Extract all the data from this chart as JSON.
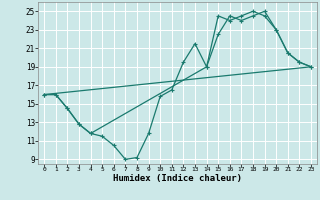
{
  "xlabel": "Humidex (Indice chaleur)",
  "ylabel": "",
  "bg_color": "#cce8e8",
  "grid_color": "#ffffff",
  "line_color": "#1a7a6e",
  "xlim": [
    -0.5,
    23.5
  ],
  "ylim": [
    8.5,
    26.0
  ],
  "xticks": [
    0,
    1,
    2,
    3,
    4,
    5,
    6,
    7,
    8,
    9,
    10,
    11,
    12,
    13,
    14,
    15,
    16,
    17,
    18,
    19,
    20,
    21,
    22,
    23
  ],
  "yticks": [
    9,
    11,
    13,
    15,
    17,
    19,
    21,
    23,
    25
  ],
  "line1_x": [
    0,
    1,
    2,
    3,
    4,
    14,
    15,
    16,
    17,
    18,
    19,
    20,
    21,
    22,
    23
  ],
  "line1_y": [
    16,
    16,
    14.5,
    12.8,
    11.8,
    19.0,
    24.5,
    24.0,
    24.5,
    25.0,
    24.5,
    23.0,
    20.5,
    19.5,
    19.0
  ],
  "line2_x": [
    0,
    1,
    2,
    3,
    4,
    5,
    6,
    7,
    8,
    9,
    10,
    11,
    12,
    13,
    14,
    15,
    16,
    17,
    18,
    19,
    20,
    21,
    22,
    23
  ],
  "line2_y": [
    16,
    16,
    14.5,
    12.8,
    11.8,
    11.5,
    10.5,
    9.0,
    9.2,
    11.8,
    15.8,
    16.5,
    19.5,
    21.5,
    19.0,
    22.5,
    24.5,
    24.0,
    24.5,
    25.0,
    23.0,
    20.5,
    19.5,
    19.0
  ],
  "line3_x": [
    0,
    23
  ],
  "line3_y": [
    16,
    19
  ]
}
